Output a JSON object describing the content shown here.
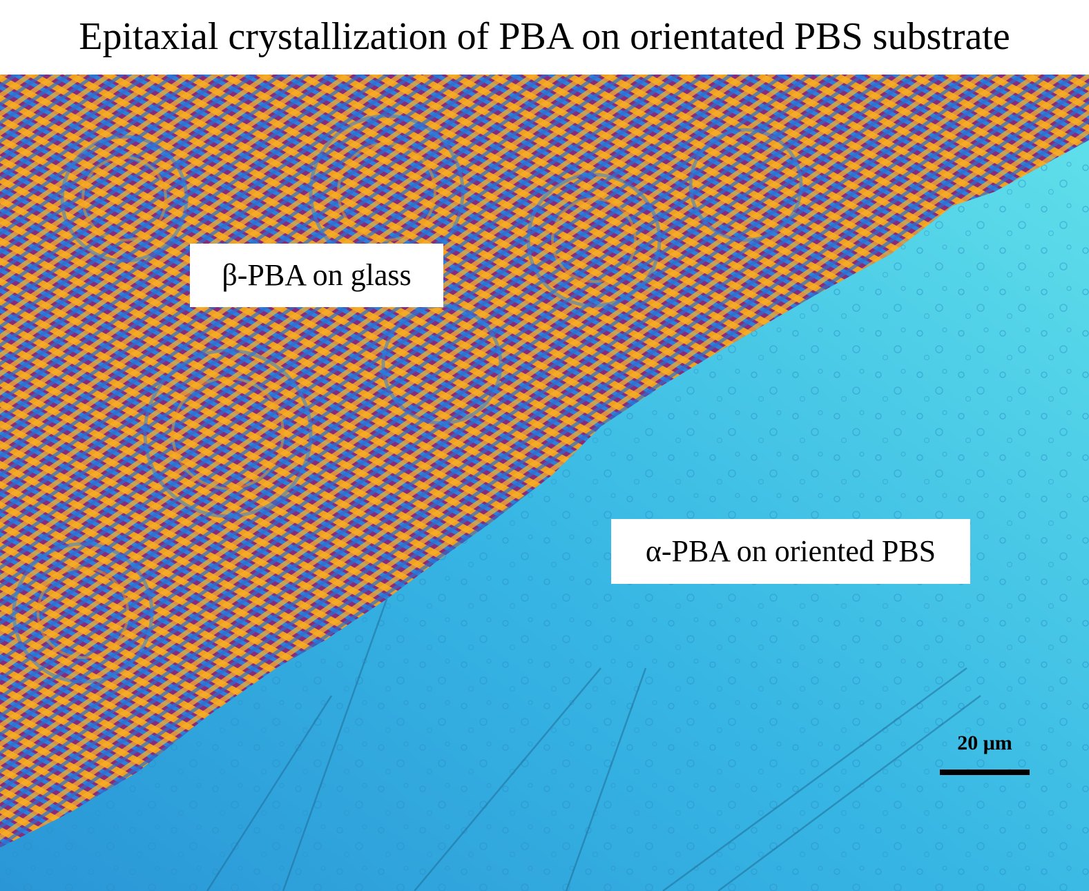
{
  "title": "Epitaxial crystallization of PBA on orientated PBS substrate",
  "image": {
    "description_free": true,
    "colors": {
      "spherulite_orange": "#f0a020",
      "spherulite_magenta": "#8a2a7a",
      "spherulite_blue": "#2f7fd9",
      "substrate_cyan": "#3fc6e6",
      "substrate_deep": "#2a9fd8",
      "substrate_light": "#5fe0ec"
    }
  },
  "labels": {
    "beta": "β-PBA on glass",
    "alpha": "α-PBA on oriented PBS"
  },
  "scalebar": {
    "text": "20 μm"
  }
}
